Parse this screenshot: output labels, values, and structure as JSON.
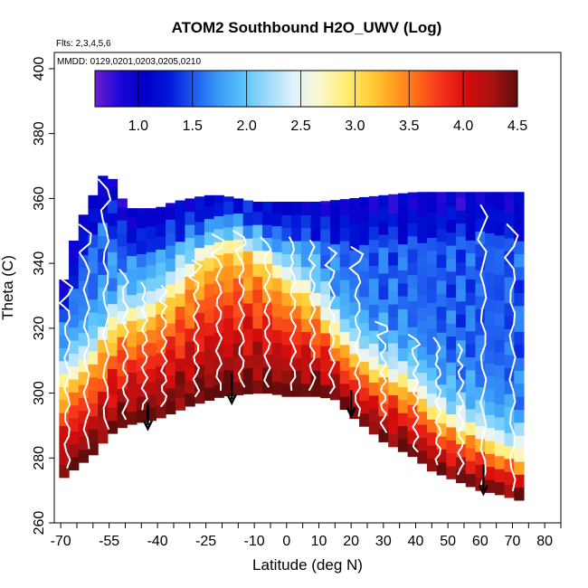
{
  "chart_data": {
    "type": "heatmap",
    "title": "ATOM2 Southbound H2O_UWV (Log)",
    "flights_note": "Flts: 2,3,4,5,6",
    "dates_note": "MMDD: 0129,0201,0203,0205,0210",
    "xlabel": "Latitude (deg N)",
    "ylabel": "Theta (C)",
    "xlim": [
      -72,
      85
    ],
    "ylim": [
      260,
      405
    ],
    "x_ticks": [
      -70,
      -65,
      -60,
      -55,
      -50,
      -45,
      -40,
      -35,
      -30,
      -25,
      -20,
      -15,
      -10,
      -5,
      0,
      5,
      10,
      15,
      20,
      25,
      30,
      35,
      40,
      45,
      50,
      55,
      60,
      65,
      70,
      75,
      80,
      85
    ],
    "x_tick_labels": [
      {
        "value": -70,
        "label": "-70"
      },
      {
        "value": -55,
        "label": "-55"
      },
      {
        "value": -40,
        "label": "-40"
      },
      {
        "value": -25,
        "label": "-25"
      },
      {
        "value": -10,
        "label": "-10"
      },
      {
        "value": 0,
        "label": "0"
      },
      {
        "value": 10,
        "label": "10"
      },
      {
        "value": 20,
        "label": "20"
      },
      {
        "value": 30,
        "label": "30"
      },
      {
        "value": 40,
        "label": "40"
      },
      {
        "value": 50,
        "label": "50"
      },
      {
        "value": 60,
        "label": "60"
      },
      {
        "value": 70,
        "label": "70"
      },
      {
        "value": 80,
        "label": "80"
      }
    ],
    "y_ticks": [
      {
        "value": 260,
        "label": "260"
      },
      {
        "value": 280,
        "label": "280"
      },
      {
        "value": 300,
        "label": "300"
      },
      {
        "value": 320,
        "label": "320"
      },
      {
        "value": 340,
        "label": "340"
      },
      {
        "value": 360,
        "label": "360"
      },
      {
        "value": 380,
        "label": "380"
      },
      {
        "value": 400,
        "label": "400"
      }
    ],
    "colorbar": {
      "range": [
        0.6,
        4.5
      ],
      "ticks": [
        {
          "value": 1.0,
          "label": "1.0"
        },
        {
          "value": 1.5,
          "label": "1.5"
        },
        {
          "value": 2.0,
          "label": "2.0"
        },
        {
          "value": 2.5,
          "label": "2.5"
        },
        {
          "value": 3.0,
          "label": "3.0"
        },
        {
          "value": 3.5,
          "label": "3.5"
        },
        {
          "value": 4.0,
          "label": "4.0"
        },
        {
          "value": 4.5,
          "label": "4.5"
        }
      ],
      "colors": [
        "#6f1fd0",
        "#1a06d8",
        "#0000c8",
        "#0018d8",
        "#1f5cf0",
        "#3a9cf8",
        "#5cc4fa",
        "#a0dcfa",
        "#e0f2fb",
        "#fbf7d2",
        "#fff07c",
        "#ffd13c",
        "#ffa020",
        "#ff6818",
        "#f3301a",
        "#d40c0c",
        "#a81212",
        "#600c0c"
      ]
    },
    "field": {
      "description": "log10 water vapor mixing ratio by latitude and potential temperature",
      "lat_min": -69,
      "lat_max": 72,
      "lat_step": 3,
      "theta_step": 4,
      "ceiling": [
        [
          -69,
          335
        ],
        [
          -66,
          347
        ],
        [
          -63,
          355
        ],
        [
          -60,
          361
        ],
        [
          -57,
          367
        ],
        [
          -54,
          366
        ],
        [
          -51,
          360
        ],
        [
          -48,
          357
        ],
        [
          -45,
          357
        ],
        [
          -40,
          357
        ],
        [
          -35,
          359
        ],
        [
          -30,
          360
        ],
        [
          -25,
          361
        ],
        [
          -20,
          361
        ],
        [
          -15,
          360
        ],
        [
          -10,
          359
        ],
        [
          -5,
          359
        ],
        [
          0,
          359
        ],
        [
          10,
          359
        ],
        [
          20,
          360
        ],
        [
          30,
          361
        ],
        [
          40,
          362
        ],
        [
          50,
          362
        ],
        [
          60,
          362
        ],
        [
          65,
          362
        ],
        [
          72,
          362
        ]
      ],
      "floor": [
        [
          -69,
          274
        ],
        [
          -60,
          281
        ],
        [
          -55,
          287
        ],
        [
          -50,
          290
        ],
        [
          -45,
          291
        ],
        [
          -40,
          292
        ],
        [
          -30,
          296
        ],
        [
          -20,
          299
        ],
        [
          -10,
          300
        ],
        [
          -5,
          300
        ],
        [
          0,
          299
        ],
        [
          10,
          299
        ],
        [
          15,
          298
        ],
        [
          20,
          293
        ],
        [
          25,
          289
        ],
        [
          30,
          285
        ],
        [
          40,
          280
        ],
        [
          45,
          276
        ],
        [
          50,
          274
        ],
        [
          55,
          272
        ],
        [
          60,
          270
        ],
        [
          65,
          269
        ],
        [
          72,
          267
        ]
      ],
      "moist_layer_top": [
        [
          -69,
          302
        ],
        [
          -60,
          310
        ],
        [
          -55,
          318
        ],
        [
          -50,
          322
        ],
        [
          -45,
          322
        ],
        [
          -40,
          326
        ],
        [
          -35,
          330
        ],
        [
          -30,
          336
        ],
        [
          -25,
          341
        ],
        [
          -20,
          344
        ],
        [
          -15,
          344
        ],
        [
          -10,
          342
        ],
        [
          -5,
          338
        ],
        [
          0,
          333
        ],
        [
          5,
          330
        ],
        [
          10,
          326
        ],
        [
          15,
          318
        ],
        [
          20,
          312
        ],
        [
          25,
          308
        ],
        [
          30,
          305
        ],
        [
          35,
          303
        ],
        [
          40,
          300
        ],
        [
          45,
          294
        ],
        [
          50,
          290
        ],
        [
          55,
          288
        ],
        [
          60,
          286
        ],
        [
          65,
          282
        ],
        [
          72,
          280
        ]
      ]
    },
    "arrows": [
      {
        "lat": -43,
        "theta_start": 297,
        "theta_end": 289
      },
      {
        "lat": -17,
        "theta_start": 306,
        "theta_end": 297
      },
      {
        "lat": 20,
        "theta_start": 301,
        "theta_end": 293
      },
      {
        "lat": 61,
        "theta_start": 278,
        "theta_end": 269
      }
    ],
    "profiles": [
      {
        "lat": -68,
        "theta_bottom": 277,
        "theta_top": 335
      },
      {
        "lat": -62,
        "theta_bottom": 283,
        "theta_top": 352
      },
      {
        "lat": -56,
        "theta_bottom": 289,
        "theta_top": 366
      },
      {
        "lat": -50,
        "theta_bottom": 292,
        "theta_top": 338
      },
      {
        "lat": -44,
        "theta_bottom": 295,
        "theta_top": 334
      },
      {
        "lat": -38,
        "theta_bottom": 296,
        "theta_top": 333
      },
      {
        "lat": -28,
        "theta_bottom": 299,
        "theta_top": 341
      },
      {
        "lat": -21,
        "theta_bottom": 301,
        "theta_top": 349
      },
      {
        "lat": -14,
        "theta_bottom": 302,
        "theta_top": 350
      },
      {
        "lat": -6,
        "theta_bottom": 302,
        "theta_top": 348
      },
      {
        "lat": 2,
        "theta_bottom": 301,
        "theta_top": 348
      },
      {
        "lat": 8,
        "theta_bottom": 301,
        "theta_top": 347
      },
      {
        "lat": 14,
        "theta_bottom": 300,
        "theta_top": 345
      },
      {
        "lat": 22,
        "theta_bottom": 293,
        "theta_top": 345
      },
      {
        "lat": 30,
        "theta_bottom": 288,
        "theta_top": 322
      },
      {
        "lat": 40,
        "theta_bottom": 282,
        "theta_top": 318
      },
      {
        "lat": 47,
        "theta_bottom": 278,
        "theta_top": 317
      },
      {
        "lat": 54,
        "theta_bottom": 275,
        "theta_top": 315
      },
      {
        "lat": 61,
        "theta_bottom": 272,
        "theta_top": 358
      },
      {
        "lat": 70,
        "theta_bottom": 270,
        "theta_top": 352
      }
    ]
  }
}
